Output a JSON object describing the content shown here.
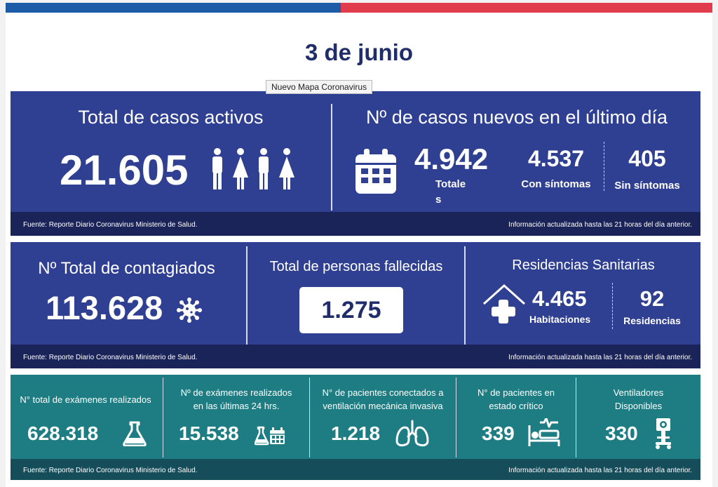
{
  "date": "3 de junio",
  "tooltip": "Nuevo Mapa Coronavirus",
  "active": {
    "title": "Total de casos activos",
    "value": "21.605"
  },
  "new_cases": {
    "title": "Nº de casos nuevos en el último día",
    "total": "4.942",
    "total_label_1": "Totale",
    "total_label_2": "s",
    "symptoms": "4.537",
    "symptoms_label": "Con síntomas",
    "no_symptoms": "405",
    "no_symptoms_label": "Sin síntomas"
  },
  "total_infected": {
    "title": "Nº Total de contagiados",
    "value": "113.628"
  },
  "deaths": {
    "title": "Total de personas fallecidas",
    "value": "1.275"
  },
  "residences": {
    "title": "Residencias Sanitarias",
    "rooms": "4.465",
    "rooms_label": "Habitaciones",
    "count": "92",
    "count_label": "Residencias"
  },
  "exams_total": {
    "title": "N° total de exámenes realizados",
    "value": "628.318"
  },
  "exams_24h": {
    "title_1": "Nº de exámenes realizados",
    "title_2": "en las últimas 24 hrs.",
    "value": "15.538"
  },
  "ventilated": {
    "title_1": "N° de pacientes conectados a",
    "title_2": "ventilación mecánica invasiva",
    "value": "1.218"
  },
  "critical": {
    "title_1": "N° de pacientes  en",
    "title_2": "estado crítico",
    "value": "339"
  },
  "ventilators": {
    "title_1": "Ventiladores",
    "title_2": "Disponibles",
    "value": "330"
  },
  "footer": {
    "source": "Fuente: Reporte Diario Coronavirus Ministerio de Salud.",
    "updated": "Información actualizada hasta las 21 horas  del día anterior."
  },
  "colors": {
    "navy_panel": "#2f3f91",
    "teal_panel": "#1d7d83",
    "top_blue": "#1d5aa8",
    "top_red": "#e03c4c",
    "title": "#1f2d6b"
  },
  "icons": [
    "people-icon",
    "calendar-icon",
    "virus-icon",
    "house-cross-icon",
    "flask-icon",
    "flask-calendar-icon",
    "lungs-icon",
    "hospital-bed-icon",
    "ventilator-icon"
  ]
}
